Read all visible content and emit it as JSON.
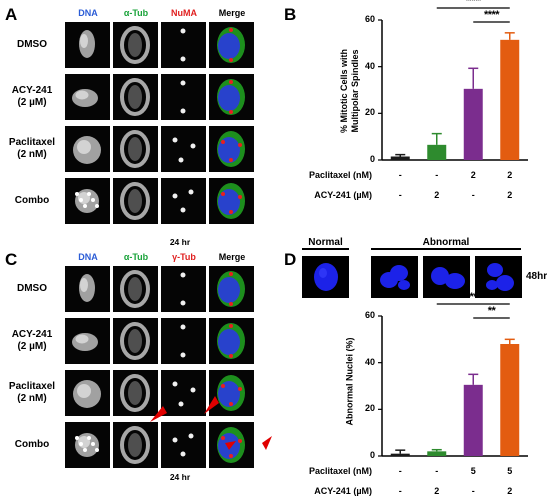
{
  "panels": {
    "A": {
      "label": "A",
      "columns": [
        "DNA",
        "α-Tub",
        "NuMA",
        "Merge"
      ],
      "column_colors": [
        "#2b5cd6",
        "#1aa33a",
        "#e02020",
        "#000000"
      ],
      "rows": [
        "DMSO",
        "ACY-241\n(2 µM)",
        "Paclitaxel\n(2 nM)",
        "Combo"
      ],
      "timepoint": "24 hr"
    },
    "C": {
      "label": "C",
      "columns": [
        "DNA",
        "α-Tub",
        "γ-Tub",
        "Merge"
      ],
      "column_colors": [
        "#2b5cd6",
        "#1aa33a",
        "#e02020",
        "#000000"
      ],
      "rows": [
        "DMSO",
        "ACY-241\n(2 µM)",
        "Paclitaxel\n(2 nM)",
        "Combo"
      ],
      "timepoint": "24 hr"
    },
    "B": {
      "label": "B"
    },
    "D": {
      "label": "D",
      "groups": [
        "Normal",
        "Abnormal"
      ],
      "timepoint": "48hr"
    }
  },
  "chart_data": [
    {
      "type": "bar",
      "ylabel": "% Mitotic Cells with\nMultipolar Spindles",
      "ylim": [
        0,
        60
      ],
      "yticks": [
        0,
        20,
        40,
        60
      ],
      "conditions": [
        {
          "name": "Paclitaxel (nM)",
          "values": [
            "-",
            "-",
            "2",
            "2"
          ]
        },
        {
          "name": "ACY-241 (µM)",
          "values": [
            "-",
            "2",
            "-",
            "2"
          ]
        }
      ],
      "values": [
        1.5,
        6.5,
        30.5,
        51.5
      ],
      "errors": [
        0.8,
        4.8,
        8.8,
        3.0
      ],
      "colors": [
        "#1a1a1a",
        "#2e8b2e",
        "#7b2d8e",
        "#e35c10"
      ],
      "significance": [
        {
          "from": 1,
          "to": 3,
          "label": "****"
        },
        {
          "from": 2,
          "to": 3,
          "label": "****"
        }
      ]
    },
    {
      "type": "bar",
      "ylabel": "Abnormal Nuclei (%)",
      "ylim": [
        0,
        60
      ],
      "yticks": [
        0,
        20,
        40,
        60
      ],
      "conditions": [
        {
          "name": "Paclitaxel (nM)",
          "values": [
            "-",
            "-",
            "5",
            "5"
          ]
        },
        {
          "name": "ACY-241 (µM)",
          "values": [
            "-",
            "2",
            "-",
            "2"
          ]
        }
      ],
      "values": [
        1.0,
        2.0,
        30.5,
        48.0
      ],
      "errors": [
        1.5,
        0.7,
        4.5,
        2.0
      ],
      "colors": [
        "#1a1a1a",
        "#2e8b2e",
        "#7b2d8e",
        "#e35c10"
      ],
      "significance": [
        {
          "from": 1,
          "to": 3,
          "label": "****"
        },
        {
          "from": 2,
          "to": 3,
          "label": "**"
        }
      ]
    }
  ]
}
